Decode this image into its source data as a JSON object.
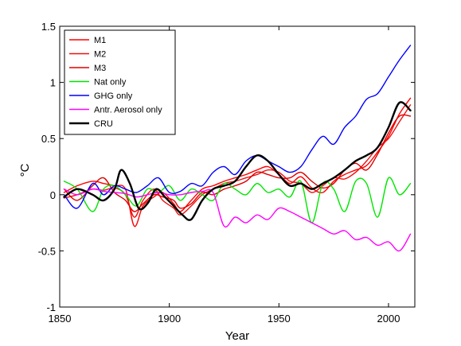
{
  "chart_data": {
    "type": "line",
    "xlabel": "Year",
    "ylabel": "°C",
    "xlim": [
      1850,
      2012
    ],
    "ylim": [
      -1,
      1.5
    ],
    "xticks": [
      1850,
      1900,
      1950,
      2000
    ],
    "xtick_labels": [
      "1850",
      "1900",
      "1950",
      "2000"
    ],
    "yticks": [
      -1,
      -0.5,
      0,
      0.5,
      1,
      1.5
    ],
    "ytick_labels": [
      "-1",
      "-0.5",
      "0",
      "0.5",
      "1",
      "1.5"
    ],
    "grid": false,
    "legend_position": "top-left",
    "series": [
      {
        "name": "M1",
        "color": "#ff0000",
        "x": [
          1852,
          1858,
          1865,
          1870,
          1875,
          1880,
          1884,
          1888,
          1893,
          1897,
          1902,
          1905,
          1910,
          1915,
          1920,
          1925,
          1930,
          1935,
          1940,
          1945,
          1950,
          1955,
          1960,
          1965,
          1970,
          1975,
          1980,
          1985,
          1990,
          1995,
          2000,
          2005,
          2010
        ],
        "y": [
          0.02,
          0.08,
          0.12,
          0.1,
          0.08,
          0.05,
          -0.28,
          -0.1,
          -0.02,
          0.02,
          -0.08,
          -0.15,
          -0.05,
          0.05,
          0.08,
          0.12,
          0.15,
          0.18,
          0.22,
          0.25,
          0.18,
          0.1,
          0.16,
          0.06,
          0.02,
          0.12,
          0.18,
          0.22,
          0.26,
          0.38,
          0.52,
          0.72,
          0.86
        ]
      },
      {
        "name": "M2",
        "color": "#ee1111",
        "x": [
          1852,
          1858,
          1865,
          1870,
          1875,
          1880,
          1884,
          1888,
          1893,
          1897,
          1902,
          1905,
          1910,
          1915,
          1920,
          1925,
          1930,
          1935,
          1940,
          1945,
          1950,
          1955,
          1960,
          1965,
          1970,
          1975,
          1980,
          1985,
          1990,
          1995,
          2000,
          2005,
          2010
        ],
        "y": [
          -0.03,
          0.0,
          0.05,
          0.04,
          0.06,
          0.0,
          -0.2,
          -0.05,
          0.05,
          -0.05,
          -0.12,
          -0.18,
          -0.1,
          0.0,
          0.05,
          0.1,
          0.12,
          0.15,
          0.18,
          0.22,
          0.2,
          0.12,
          0.1,
          0.02,
          0.08,
          0.15,
          0.14,
          0.2,
          0.3,
          0.42,
          0.5,
          0.65,
          0.8
        ]
      },
      {
        "name": "M3",
        "color": "#dd0000",
        "x": [
          1852,
          1858,
          1865,
          1870,
          1875,
          1880,
          1884,
          1888,
          1893,
          1897,
          1902,
          1905,
          1910,
          1915,
          1920,
          1925,
          1930,
          1935,
          1940,
          1945,
          1950,
          1955,
          1960,
          1965,
          1970,
          1975,
          1980,
          1985,
          1990,
          1995,
          2000,
          2005,
          2010
        ],
        "y": [
          0.05,
          -0.05,
          0.08,
          0.15,
          0.02,
          -0.05,
          -0.15,
          -0.08,
          0.0,
          -0.02,
          -0.05,
          -0.12,
          -0.08,
          0.02,
          0.0,
          0.05,
          0.08,
          0.12,
          0.2,
          0.18,
          0.15,
          0.15,
          0.2,
          0.12,
          0.06,
          0.1,
          0.22,
          0.28,
          0.22,
          0.36,
          0.55,
          0.7,
          0.7
        ]
      },
      {
        "name": "Nat only",
        "color": "#00e600",
        "x": [
          1852,
          1858,
          1865,
          1870,
          1875,
          1880,
          1885,
          1890,
          1895,
          1900,
          1905,
          1910,
          1915,
          1920,
          1925,
          1930,
          1935,
          1940,
          1945,
          1950,
          1955,
          1960,
          1965,
          1970,
          1975,
          1980,
          1985,
          1990,
          1995,
          2000,
          2005,
          2010
        ],
        "y": [
          0.12,
          0.05,
          -0.15,
          0.05,
          0.08,
          0.0,
          -0.1,
          0.05,
          0.02,
          0.08,
          -0.05,
          0.05,
          0.0,
          -0.05,
          0.1,
          0.05,
          0.0,
          0.1,
          0.02,
          0.05,
          -0.02,
          0.12,
          -0.25,
          0.1,
          0.05,
          -0.15,
          0.12,
          0.1,
          -0.2,
          0.15,
          0.0,
          0.1
        ]
      },
      {
        "name": "GHG only",
        "color": "#0000ff",
        "x": [
          1852,
          1858,
          1865,
          1870,
          1875,
          1880,
          1885,
          1890,
          1895,
          1900,
          1905,
          1910,
          1915,
          1920,
          1925,
          1930,
          1935,
          1940,
          1945,
          1950,
          1955,
          1960,
          1965,
          1970,
          1975,
          1980,
          1985,
          1990,
          1995,
          2000,
          2005,
          2010
        ],
        "y": [
          0.0,
          -0.12,
          0.1,
          0.0,
          0.08,
          0.05,
          0.02,
          0.08,
          0.15,
          0.02,
          0.03,
          0.1,
          0.08,
          0.2,
          0.25,
          0.18,
          0.3,
          0.35,
          0.3,
          0.25,
          0.2,
          0.25,
          0.4,
          0.52,
          0.45,
          0.6,
          0.7,
          0.85,
          0.9,
          1.05,
          1.2,
          1.33
        ]
      },
      {
        "name": "Antr. Aerosol only",
        "color": "#ff00ff",
        "x": [
          1852,
          1858,
          1865,
          1870,
          1875,
          1880,
          1885,
          1890,
          1895,
          1900,
          1905,
          1910,
          1915,
          1920,
          1925,
          1930,
          1935,
          1940,
          1945,
          1950,
          1955,
          1960,
          1965,
          1970,
          1975,
          1980,
          1985,
          1990,
          1995,
          2000,
          2005,
          2010
        ],
        "y": [
          0.05,
          0.0,
          0.05,
          0.03,
          0.02,
          0.01,
          -0.02,
          0.0,
          0.02,
          0.0,
          0.0,
          0.02,
          0.03,
          0.02,
          -0.28,
          -0.2,
          -0.25,
          -0.18,
          -0.22,
          -0.12,
          -0.15,
          -0.2,
          -0.25,
          -0.3,
          -0.35,
          -0.32,
          -0.4,
          -0.38,
          -0.45,
          -0.42,
          -0.5,
          -0.35
        ]
      },
      {
        "name": "CRU",
        "color": "#000000",
        "x": [
          1852,
          1858,
          1865,
          1870,
          1875,
          1878,
          1882,
          1886,
          1890,
          1894,
          1898,
          1902,
          1906,
          1910,
          1915,
          1920,
          1925,
          1930,
          1935,
          1940,
          1945,
          1950,
          1955,
          1960,
          1965,
          1970,
          1975,
          1980,
          1985,
          1990,
          1995,
          2000,
          2005,
          2010
        ],
        "y": [
          -0.02,
          0.05,
          0.0,
          -0.05,
          0.05,
          0.22,
          0.1,
          -0.12,
          -0.08,
          0.05,
          -0.02,
          -0.1,
          -0.18,
          -0.22,
          -0.05,
          0.05,
          0.08,
          0.12,
          0.25,
          0.35,
          0.3,
          0.18,
          0.08,
          0.1,
          0.05,
          0.1,
          0.15,
          0.22,
          0.3,
          0.35,
          0.42,
          0.6,
          0.82,
          0.75
        ]
      }
    ]
  }
}
